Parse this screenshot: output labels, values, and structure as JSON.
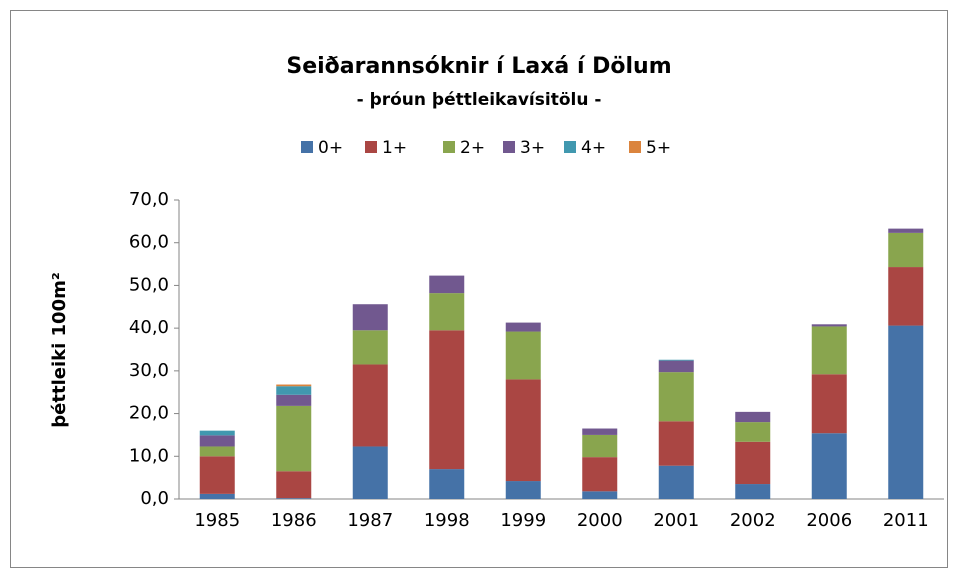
{
  "chart_data": {
    "type": "stacked_bar",
    "title": "Seiðarannsóknir í Laxá í Dölum",
    "subtitle": "- þróun þéttleikavísitölu -",
    "y_label": "þéttleiki 100m²",
    "categories": [
      "1985",
      "1986",
      "1987",
      "1998",
      "1999",
      "2000",
      "2001",
      "2002",
      "2006",
      "2011"
    ],
    "series": [
      {
        "name": "0+",
        "color": "#4572a7",
        "values": [
          1.2,
          0.2,
          12.3,
          7.0,
          4.2,
          1.8,
          7.8,
          3.5,
          15.4,
          40.6
        ]
      },
      {
        "name": "1+",
        "color": "#aa4643",
        "values": [
          8.8,
          6.3,
          19.2,
          32.5,
          23.8,
          8.0,
          10.4,
          9.9,
          13.8,
          13.7
        ]
      },
      {
        "name": "2+",
        "color": "#89a54e",
        "values": [
          2.3,
          15.3,
          8.0,
          8.7,
          11.2,
          5.2,
          11.5,
          4.6,
          11.2,
          8.0
        ]
      },
      {
        "name": "3+",
        "color": "#71588f",
        "values": [
          2.6,
          2.6,
          6.1,
          4.1,
          2.1,
          1.5,
          2.7,
          2.4,
          0.5,
          1.0
        ]
      },
      {
        "name": "4+",
        "color": "#4198af",
        "values": [
          1.1,
          2.0,
          0,
          0,
          0,
          0,
          0.2,
          0,
          0,
          0
        ]
      },
      {
        "name": "5+",
        "color": "#db843d",
        "values": [
          0,
          0.4,
          0,
          0,
          0,
          0,
          0,
          0,
          0,
          0
        ]
      }
    ],
    "ylim": [
      0,
      70
    ],
    "yticks": [
      {
        "value": 0,
        "label": "0,0"
      },
      {
        "value": 10,
        "label": "10,0"
      },
      {
        "value": 20,
        "label": "20,0"
      },
      {
        "value": 30,
        "label": "30,0"
      },
      {
        "value": 40,
        "label": "40,0"
      },
      {
        "value": 50,
        "label": "50,0"
      },
      {
        "value": 60,
        "label": "60,0"
      },
      {
        "value": 70,
        "label": "70,0"
      }
    ],
    "grid": false,
    "legend": "top"
  }
}
